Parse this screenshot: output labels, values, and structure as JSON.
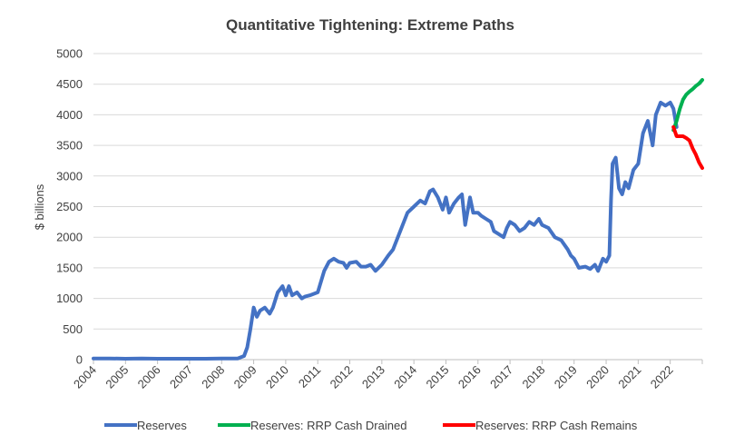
{
  "chart_data": {
    "type": "line",
    "title": "Quantitative Tightening: Extreme Paths",
    "ylabel": "$ billions",
    "xlabel": "",
    "ylim": [
      0,
      5000
    ],
    "xlim": [
      2004,
      2023
    ],
    "yticks": [
      "0",
      "500",
      "1000",
      "1500",
      "2000",
      "2500",
      "3000",
      "3500",
      "4000",
      "4500",
      "5000"
    ],
    "xticks": [
      "2004",
      "2005",
      "2006",
      "2007",
      "2008",
      "2009",
      "2010",
      "2011",
      "2012",
      "2013",
      "2014",
      "2015",
      "2016",
      "2017",
      "2018",
      "2019",
      "2020",
      "2021",
      "2022"
    ],
    "grid": true,
    "legend_position": "bottom",
    "series": [
      {
        "name": "Reserves",
        "color": "#4472c4",
        "x": [
          2004.0,
          2004.5,
          2005.0,
          2005.5,
          2006.0,
          2006.5,
          2007.0,
          2007.5,
          2008.0,
          2008.5,
          2008.7,
          2008.8,
          2008.9,
          2009.0,
          2009.1,
          2009.2,
          2009.35,
          2009.5,
          2009.6,
          2009.75,
          2009.9,
          2010.0,
          2010.1,
          2010.2,
          2010.35,
          2010.5,
          2010.6,
          2010.75,
          2011.0,
          2011.2,
          2011.35,
          2011.5,
          2011.65,
          2011.8,
          2011.9,
          2012.0,
          2012.2,
          2012.35,
          2012.5,
          2012.65,
          2012.8,
          2013.0,
          2013.2,
          2013.35,
          2013.5,
          2013.65,
          2013.8,
          2014.0,
          2014.2,
          2014.35,
          2014.5,
          2014.6,
          2014.75,
          2014.9,
          2015.0,
          2015.1,
          2015.25,
          2015.4,
          2015.5,
          2015.6,
          2015.75,
          2015.85,
          2016.0,
          2016.1,
          2016.25,
          2016.4,
          2016.5,
          2016.65,
          2016.8,
          2016.9,
          2017.0,
          2017.15,
          2017.3,
          2017.45,
          2017.6,
          2017.75,
          2017.9,
          2018.0,
          2018.2,
          2018.4,
          2018.6,
          2018.8,
          2018.9,
          2019.0,
          2019.15,
          2019.35,
          2019.5,
          2019.65,
          2019.75,
          2019.9,
          2020.0,
          2020.1,
          2020.15,
          2020.2,
          2020.3,
          2020.4,
          2020.5,
          2020.6,
          2020.7,
          2020.85,
          2021.0,
          2021.15,
          2021.3,
          2021.45,
          2021.55,
          2021.7,
          2021.85,
          2022.0,
          2022.1,
          2022.2
        ],
        "values": [
          20,
          20,
          15,
          20,
          15,
          15,
          15,
          15,
          20,
          20,
          60,
          200,
          500,
          850,
          700,
          800,
          850,
          750,
          850,
          1100,
          1200,
          1050,
          1200,
          1050,
          1100,
          1000,
          1030,
          1050,
          1100,
          1450,
          1600,
          1650,
          1600,
          1580,
          1500,
          1580,
          1600,
          1520,
          1520,
          1550,
          1450,
          1550,
          1700,
          1800,
          2000,
          2200,
          2400,
          2500,
          2600,
          2550,
          2750,
          2780,
          2650,
          2450,
          2650,
          2400,
          2550,
          2650,
          2700,
          2200,
          2650,
          2400,
          2400,
          2350,
          2300,
          2250,
          2100,
          2050,
          2000,
          2150,
          2250,
          2200,
          2100,
          2150,
          2250,
          2200,
          2300,
          2200,
          2150,
          2000,
          1950,
          1800,
          1700,
          1650,
          1500,
          1520,
          1480,
          1550,
          1450,
          1650,
          1600,
          1700,
          2600,
          3200,
          3300,
          2800,
          2700,
          2900,
          2800,
          3100,
          3200,
          3700,
          3900,
          3500,
          4000,
          4200,
          4150,
          4200,
          4100,
          3800
        ]
      },
      {
        "name": "Reserves: RRP Cash Drained",
        "color": "#00b050",
        "x": [
          2022.1,
          2022.2,
          2022.3,
          2022.4,
          2022.5,
          2022.6,
          2022.7,
          2022.8,
          2022.9,
          2023.0
        ],
        "values": [
          3750,
          3900,
          4100,
          4250,
          4330,
          4380,
          4420,
          4470,
          4510,
          4570
        ]
      },
      {
        "name": "Reserves: RRP Cash Remains",
        "color": "#ff0000",
        "x": [
          2022.1,
          2022.2,
          2022.3,
          2022.4,
          2022.5,
          2022.6,
          2022.7,
          2022.8,
          2022.9,
          2023.0
        ],
        "values": [
          3800,
          3650,
          3650,
          3650,
          3620,
          3580,
          3450,
          3350,
          3220,
          3130
        ]
      }
    ]
  }
}
